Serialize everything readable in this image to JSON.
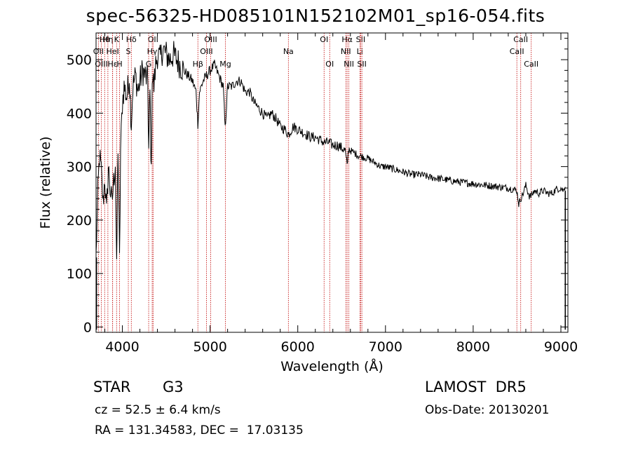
{
  "title": "spec-56325-HD085101N152102M01_sp16-054.fits",
  "info": {
    "object_class": "STAR",
    "subclass": "G3",
    "survey": "LAMOST  DR5",
    "cz": "cz = 52.5 ± 6.4 km/s",
    "obs_date": "Obs-Date: 20130201",
    "coords": "RA = 131.34583, DEC =  17.03135"
  },
  "colors": {
    "spectrum": "#000000",
    "line_markers": "#c00000",
    "axes": "#000000"
  },
  "chart_data": {
    "type": "line",
    "title": "spec-56325-HD085101N152102M01_sp16-054.fits",
    "xlabel": "Wavelength (Å)",
    "ylabel": "Flux (relative)",
    "xlim": [
      3700,
      9080
    ],
    "ylim": [
      -10,
      550
    ],
    "xticks": [
      4000,
      5000,
      6000,
      7000,
      8000,
      9000
    ],
    "yticks": [
      0,
      100,
      200,
      300,
      400,
      500
    ],
    "grid": false,
    "series": [
      {
        "values_x": [
          3700,
          3720,
          3740,
          3760,
          3780,
          3800,
          3820,
          3840,
          3860,
          3880,
          3900,
          3920,
          3935,
          3950,
          3968,
          3980,
          4000,
          4020,
          4050,
          4080,
          4102,
          4120,
          4150,
          4180,
          4200,
          4230,
          4260,
          4290,
          4300,
          4315,
          4330,
          4340,
          4360,
          4380,
          4400,
          4430,
          4460,
          4500,
          4540,
          4580,
          4620,
          4660,
          4700,
          4750,
          4800,
          4840,
          4861,
          4880,
          4920,
          4960,
          5000,
          5050,
          5100,
          5150,
          5172,
          5200,
          5250,
          5300,
          5350,
          5400,
          5450,
          5500,
          5550,
          5600,
          5650,
          5700,
          5750,
          5800,
          5850,
          5893,
          5950,
          6000,
          6050,
          6100,
          6150,
          6200,
          6250,
          6300,
          6350,
          6400,
          6450,
          6500,
          6540,
          6563,
          6580,
          6600,
          6650,
          6700,
          6750,
          6800,
          6850,
          6900,
          6950,
          7000,
          7100,
          7200,
          7300,
          7400,
          7500,
          7600,
          7700,
          7800,
          7900,
          8000,
          8100,
          8200,
          8300,
          8400,
          8450,
          8498,
          8520,
          8542,
          8570,
          8600,
          8640,
          8662,
          8700,
          8750,
          8800,
          8850,
          8900,
          8950,
          9000,
          9030,
          9050
        ],
        "values_y": [
          130,
          250,
          320,
          290,
          230,
          280,
          210,
          300,
          260,
          230,
          270,
          310,
          100,
          340,
          120,
          330,
          420,
          450,
          430,
          470,
          380,
          450,
          470,
          440,
          460,
          480,
          470,
          460,
          330,
          440,
          280,
          470,
          450,
          490,
          510,
          500,
          520,
          510,
          500,
          510,
          500,
          490,
          480,
          470,
          460,
          440,
          380,
          440,
          460,
          470,
          480,
          490,
          470,
          450,
          370,
          450,
          450,
          460,
          460,
          440,
          440,
          420,
          410,
          400,
          390,
          400,
          390,
          375,
          370,
          360,
          375,
          370,
          365,
          360,
          355,
          355,
          350,
          345,
          345,
          340,
          340,
          335,
          330,
          300,
          335,
          330,
          325,
          320,
          318,
          315,
          310,
          305,
          300,
          300,
          295,
          290,
          285,
          285,
          280,
          278,
          275,
          272,
          270,
          268,
          266,
          264,
          262,
          260,
          258,
          255,
          230,
          240,
          250,
          265,
          245,
          245,
          255,
          250,
          255,
          250,
          250,
          258,
          260,
          255,
          262
        ]
      }
    ],
    "line_markers": [
      {
        "label": "Hθ",
        "wavelength": 3798,
        "row": 0
      },
      {
        "label": "K",
        "wavelength": 3934,
        "row": 0
      },
      {
        "label": "Hδ",
        "wavelength": 4102,
        "row": 0
      },
      {
        "label": "OII",
        "wavelength": 4350,
        "row": 0
      },
      {
        "label": "OIII",
        "wavelength": 5007,
        "row": 0
      },
      {
        "label": "OI",
        "wavelength": 6300,
        "row": 0
      },
      {
        "label": "Hα",
        "wavelength": 6563,
        "row": 0
      },
      {
        "label": "SII",
        "wavelength": 6717,
        "row": 0
      },
      {
        "label": "CaII",
        "wavelength": 8542,
        "row": 0
      },
      {
        "label": "Hη",
        "wavelength": 3835,
        "row": 0
      },
      {
        "label": "OII",
        "wavelength": 3727,
        "row": 1
      },
      {
        "label": "HeI",
        "wavelength": 3889,
        "row": 1
      },
      {
        "label": "S",
        "wavelength": 4068,
        "row": 1
      },
      {
        "label": "Hγ",
        "wavelength": 4340,
        "row": 1
      },
      {
        "label": "OIII",
        "wavelength": 4959,
        "row": 1
      },
      {
        "label": "Na",
        "wavelength": 5893,
        "row": 1
      },
      {
        "label": "NII",
        "wavelength": 6548,
        "row": 1
      },
      {
        "label": "Li",
        "wavelength": 6708,
        "row": 1
      },
      {
        "label": "CaII",
        "wavelength": 8498,
        "row": 1
      },
      {
        "label": "OIII",
        "wavelength": 3760,
        "row": 2
      },
      {
        "label": "Hε",
        "wavelength": 3889,
        "row": 2
      },
      {
        "label": "H",
        "wavelength": 3968,
        "row": 2
      },
      {
        "label": "G",
        "wavelength": 4300,
        "row": 2
      },
      {
        "label": "Hβ",
        "wavelength": 4861,
        "row": 2
      },
      {
        "label": "Mg",
        "wavelength": 5175,
        "row": 2
      },
      {
        "label": "OI",
        "wavelength": 6364,
        "row": 2
      },
      {
        "label": "NII",
        "wavelength": 6583,
        "row": 2
      },
      {
        "label": "SII",
        "wavelength": 6731,
        "row": 2
      },
      {
        "label": "CaII",
        "wavelength": 8662,
        "row": 2
      }
    ]
  }
}
